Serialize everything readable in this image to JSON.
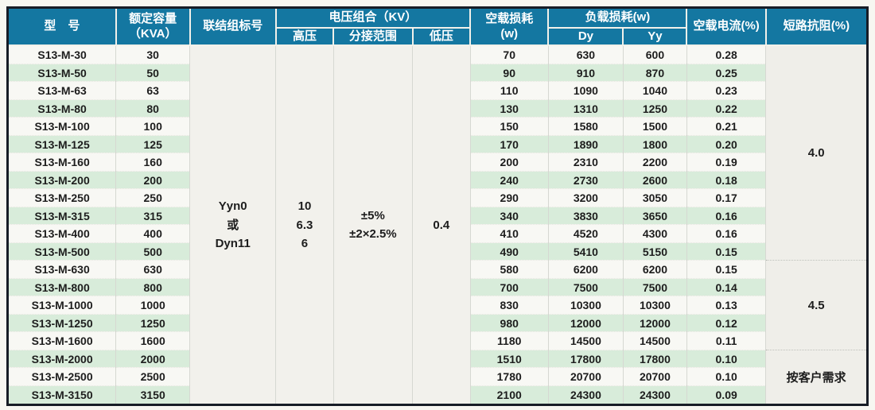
{
  "colors": {
    "header_bg": "#1477a1",
    "header_text": "#ffffff",
    "stripe_green": "#d8ecda",
    "row_white": "#f8f8f4",
    "outer_border": "#171c26"
  },
  "table": {
    "headers": {
      "model": "型　号",
      "capacity_line1": "额定容量",
      "capacity_line2": "（KVA）",
      "connection": "联结组标号",
      "voltage_group": "电压组合（KV）",
      "hv": "高压",
      "tap_range": "分接范围",
      "lv": "低压",
      "no_load_loss_line1": "空载损耗",
      "no_load_loss_line2": "(w)",
      "load_loss": "负载损耗(w)",
      "dy": "Dy",
      "yy": "Yy",
      "no_load_current": "空载电流(%)",
      "impedance": "短路抗阻(%)"
    },
    "merged_cells": [
      {
        "name": "connection-group-cell",
        "lines": [
          "Yyn0",
          "或",
          "Dyn11"
        ]
      },
      {
        "name": "high-voltage-cell",
        "lines": [
          "10",
          "6.3",
          "6"
        ]
      },
      {
        "name": "tap-range-cell",
        "lines": [
          "±5%",
          "±2×2.5%"
        ]
      },
      {
        "name": "low-voltage-cell",
        "lines": [
          "0.4"
        ]
      }
    ],
    "rows": [
      {
        "model": "S13-M-30",
        "kva": "30",
        "no_load_loss": "70",
        "dy": "630",
        "yy": "600",
        "current": "0.28"
      },
      {
        "model": "S13-M-50",
        "kva": "50",
        "no_load_loss": "90",
        "dy": "910",
        "yy": "870",
        "current": "0.25"
      },
      {
        "model": "S13-M-63",
        "kva": "63",
        "no_load_loss": "110",
        "dy": "1090",
        "yy": "1040",
        "current": "0.23"
      },
      {
        "model": "S13-M-80",
        "kva": "80",
        "no_load_loss": "130",
        "dy": "1310",
        "yy": "1250",
        "current": "0.22"
      },
      {
        "model": "S13-M-100",
        "kva": "100",
        "no_load_loss": "150",
        "dy": "1580",
        "yy": "1500",
        "current": "0.21"
      },
      {
        "model": "S13-M-125",
        "kva": "125",
        "no_load_loss": "170",
        "dy": "1890",
        "yy": "1800",
        "current": "0.20"
      },
      {
        "model": "S13-M-160",
        "kva": "160",
        "no_load_loss": "200",
        "dy": "2310",
        "yy": "2200",
        "current": "0.19"
      },
      {
        "model": "S13-M-200",
        "kva": "200",
        "no_load_loss": "240",
        "dy": "2730",
        "yy": "2600",
        "current": "0.18"
      },
      {
        "model": "S13-M-250",
        "kva": "250",
        "no_load_loss": "290",
        "dy": "3200",
        "yy": "3050",
        "current": "0.17"
      },
      {
        "model": "S13-M-315",
        "kva": "315",
        "no_load_loss": "340",
        "dy": "3830",
        "yy": "3650",
        "current": "0.16"
      },
      {
        "model": "S13-M-400",
        "kva": "400",
        "no_load_loss": "410",
        "dy": "4520",
        "yy": "4300",
        "current": "0.16"
      },
      {
        "model": "S13-M-500",
        "kva": "500",
        "no_load_loss": "490",
        "dy": "5410",
        "yy": "5150",
        "current": "0.15"
      },
      {
        "model": "S13-M-630",
        "kva": "630",
        "no_load_loss": "580",
        "dy": "6200",
        "yy": "6200",
        "current": "0.15"
      },
      {
        "model": "S13-M-800",
        "kva": "800",
        "no_load_loss": "700",
        "dy": "7500",
        "yy": "7500",
        "current": "0.14"
      },
      {
        "model": "S13-M-1000",
        "kva": "1000",
        "no_load_loss": "830",
        "dy": "10300",
        "yy": "10300",
        "current": "0.13"
      },
      {
        "model": "S13-M-1250",
        "kva": "1250",
        "no_load_loss": "980",
        "dy": "12000",
        "yy": "12000",
        "current": "0.12"
      },
      {
        "model": "S13-M-1600",
        "kva": "1600",
        "no_load_loss": "1180",
        "dy": "14500",
        "yy": "14500",
        "current": "0.11"
      },
      {
        "model": "S13-M-2000",
        "kva": "2000",
        "no_load_loss": "1510",
        "dy": "17800",
        "yy": "17800",
        "current": "0.10"
      },
      {
        "model": "S13-M-2500",
        "kva": "2500",
        "no_load_loss": "1780",
        "dy": "20700",
        "yy": "20700",
        "current": "0.10"
      },
      {
        "model": "S13-M-3150",
        "kva": "3150",
        "no_load_loss": "2100",
        "dy": "24300",
        "yy": "24300",
        "current": "0.09"
      }
    ],
    "impedance_sections": [
      {
        "value": "4.0",
        "row_span": 12
      },
      {
        "value": "4.5",
        "row_span": 5
      },
      {
        "value": "按客户需求",
        "row_span": 3
      }
    ]
  }
}
